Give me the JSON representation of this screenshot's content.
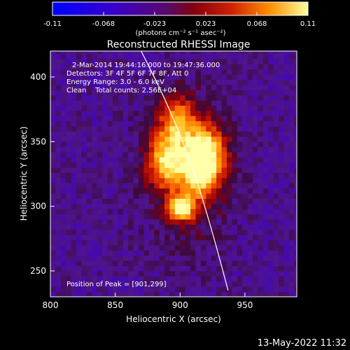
{
  "colorbar": {
    "ticks": [
      "-0.11",
      "-0.068",
      "-0.023",
      "0.023",
      "0.068",
      "0.11"
    ],
    "units_label": "(photons cm⁻² s⁻¹ asec⁻²)",
    "range": [
      -0.11,
      0.11
    ]
  },
  "chart_data": {
    "type": "heatmap",
    "title": "Reconstructed RHESSI Image",
    "xlabel": "Heliocentric X (arcsec)",
    "ylabel": "Heliocentric Y (arcsec)",
    "xlim": [
      800,
      990
    ],
    "ylim": [
      230,
      420
    ],
    "xticks": [
      800,
      850,
      900,
      950
    ],
    "yticks": [
      250,
      300,
      350,
      400
    ],
    "annotations": [
      "2-Mar-2014 19:44:16.000 to 19:47:36.000",
      "Detectors: 3F 4F 5F 6F 7F 8F, Att 0",
      "Energy Range: 3.0 - 6.0 keV",
      "Clean    Total counts: 2.56E+04"
    ],
    "peak_label": "Position of Peak = [901,299]",
    "peak": [
      901,
      299
    ],
    "sources": [
      {
        "x": 901,
        "y": 299,
        "value": 0.11
      },
      {
        "x": 920,
        "y": 343,
        "value": 0.085
      },
      {
        "x": 916,
        "y": 325,
        "value": 0.07
      },
      {
        "x": 890,
        "y": 335,
        "value": 0.075
      },
      {
        "x": 898,
        "y": 365,
        "value": 0.06
      }
    ],
    "limb_curve": [
      [
        870,
        420
      ],
      [
        890,
        380
      ],
      [
        910,
        330
      ],
      [
        925,
        280
      ],
      [
        937,
        235
      ]
    ]
  },
  "footer": {
    "date": "13-May-2022 11:32"
  }
}
